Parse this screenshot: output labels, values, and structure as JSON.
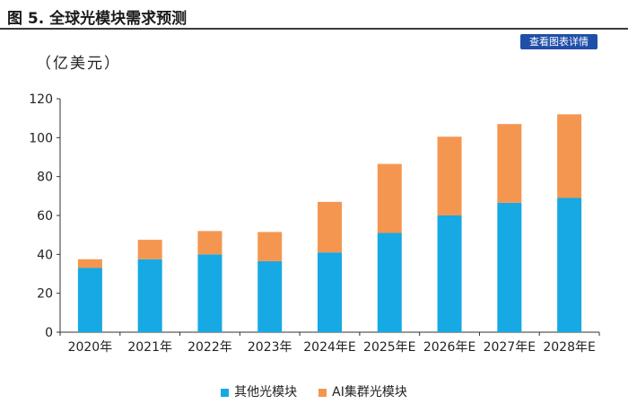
{
  "header": {
    "title": "图 5. 全球光模块需求预测"
  },
  "toolbar": {
    "detail_label": "查看图表详情"
  },
  "chart_data": {
    "type": "bar",
    "stacked": true,
    "unit_label": "（亿美元）",
    "categories": [
      "2020年",
      "2021年",
      "2022年",
      "2023年",
      "2024年E",
      "2025年E",
      "2026年E",
      "2027年E",
      "2028年E"
    ],
    "series": [
      {
        "name": "其他光模块",
        "color": "#16a9e3",
        "values": [
          33,
          37.5,
          40,
          36.5,
          41,
          51,
          60,
          66.5,
          69
        ]
      },
      {
        "name": "AI集群光模块",
        "color": "#f59650",
        "values": [
          4.5,
          10,
          12,
          15,
          26,
          35.5,
          40.5,
          40.5,
          43
        ]
      }
    ],
    "ylim": [
      0,
      120
    ],
    "yticks": [
      0,
      20,
      40,
      60,
      80,
      100,
      120
    ],
    "legend_position": "bottom",
    "grid": false
  }
}
